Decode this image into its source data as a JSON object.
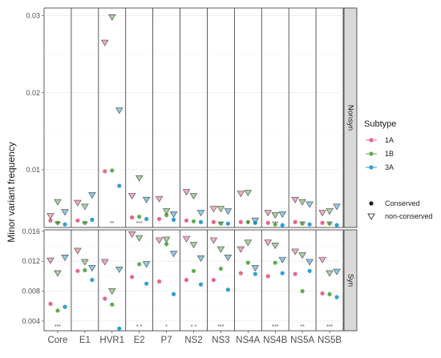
{
  "chart_data": {
    "type": "scatter",
    "ylabel": "Minor variant frequency",
    "xlabel": "",
    "categories": [
      "Core",
      "E1",
      "HVR1",
      "E2",
      "P7",
      "NS2",
      "NS3",
      "NS4A",
      "NS4B",
      "NS5A",
      "NS5B"
    ],
    "subtypes": [
      "1A",
      "1B",
      "3A"
    ],
    "subtype_colors": [
      "#e8668b",
      "#5fad4e",
      "#2e9fd6"
    ],
    "shapes": {
      "conserved": "filled-circle",
      "non_conserved": "open-triangle-down"
    },
    "legend": {
      "title": "Subtype",
      "subtypes": [
        "1A",
        "1B",
        "3A"
      ],
      "shape_labels": [
        "Conserved",
        "non-conserved"
      ],
      "position": "right"
    },
    "panels": [
      {
        "strip": "Nonsyn",
        "ylim": [
          0.0025,
          0.031
        ],
        "yticks": [
          0.01,
          0.02,
          0.03
        ],
        "yticklabels": [
          "0.01",
          "0.02",
          "0.03"
        ],
        "significance": [
          "***",
          "* *",
          "**",
          "***",
          "",
          "",
          "***",
          "*",
          "***",
          "***",
          "***"
        ],
        "series": [
          {
            "subtype": "1A",
            "kind": "conserved",
            "values": [
              0.0034,
              0.0034,
              0.0098,
              0.0038,
              0.0036,
              0.0034,
              0.0032,
              0.0032,
              0.0031,
              0.0032,
              0.0031
            ]
          },
          {
            "subtype": "1B",
            "kind": "conserved",
            "values": [
              0.0031,
              0.0031,
              0.0099,
              0.0039,
              0.0041,
              0.0033,
              0.003,
              0.0032,
              0.0029,
              0.003,
              0.003
            ]
          },
          {
            "subtype": "3A",
            "kind": "conserved",
            "values": [
              0.0029,
              0.0035,
              0.0079,
              0.0036,
              0.0035,
              0.0032,
              0.003,
              0.0031,
              0.0028,
              0.0029,
              0.0028
            ]
          },
          {
            "subtype": "1A",
            "kind": "non-conserved",
            "values": [
              0.004,
              0.0057,
              0.0265,
              0.0066,
              0.0062,
              0.0071,
              0.0049,
              0.0069,
              0.0044,
              0.0061,
              0.0044
            ]
          },
          {
            "subtype": "1B",
            "kind": "non-conserved",
            "values": [
              0.0058,
              0.0052,
              0.0298,
              0.0089,
              0.0046,
              0.0066,
              0.0049,
              0.007,
              0.0041,
              0.0058,
              0.0046
            ]
          },
          {
            "subtype": "3A",
            "kind": "non-conserved",
            "values": [
              0.0045,
              0.0067,
              0.0177,
              0.0061,
              0.0042,
              0.0044,
              0.0046,
              0.0034,
              0.0042,
              0.0055,
              0.0052
            ]
          }
        ]
      },
      {
        "strip": "Syn",
        "ylim": [
          0.0027,
          0.0162
        ],
        "yticks": [
          0.004,
          0.008,
          0.012,
          0.016
        ],
        "yticklabels": [
          "0.004",
          "0.008",
          "0.012",
          "0.016"
        ],
        "significance": [
          "***",
          "",
          "",
          "* *",
          "*",
          "* *",
          "***",
          "",
          "***",
          "**",
          "***"
        ],
        "series": [
          {
            "subtype": "1A",
            "kind": "conserved",
            "values": [
              0.0063,
              0.0107,
              0.007,
              0.0099,
              0.0093,
              0.0095,
              0.0095,
              0.0104,
              0.01,
              0.0103,
              0.0077
            ]
          },
          {
            "subtype": "1B",
            "kind": "conserved",
            "values": [
              0.0054,
              0.0108,
              0.0062,
              0.0116,
              0.0143,
              0.0107,
              0.011,
              0.0118,
              0.0118,
              0.008,
              0.0076
            ]
          },
          {
            "subtype": "3A",
            "kind": "conserved",
            "values": [
              0.0059,
              0.0095,
              0.003,
              0.009,
              0.0076,
              0.0089,
              0.0082,
              0.0103,
              0.0104,
              0.0107,
              0.0072
            ]
          },
          {
            "subtype": "1A",
            "kind": "non-conserved",
            "values": [
              0.0121,
              0.0134,
              0.0119,
              0.0156,
              0.0148,
              0.015,
              0.0148,
              0.0136,
              0.0145,
              0.0133,
              0.0122
            ]
          },
          {
            "subtype": "1B",
            "kind": "non-conserved",
            "values": [
              0.0104,
              0.0119,
              0.008,
              0.0151,
              0.0149,
              0.0142,
              0.0136,
              0.0145,
              0.0141,
              0.0128,
              0.0104
            ]
          },
          {
            "subtype": "3A",
            "kind": "non-conserved",
            "values": [
              0.0125,
              0.0111,
              0.0109,
              0.0116,
              0.013,
              0.0124,
              0.0125,
              0.0111,
              0.0122,
              0.0119,
              0.0106
            ]
          }
        ]
      }
    ]
  }
}
